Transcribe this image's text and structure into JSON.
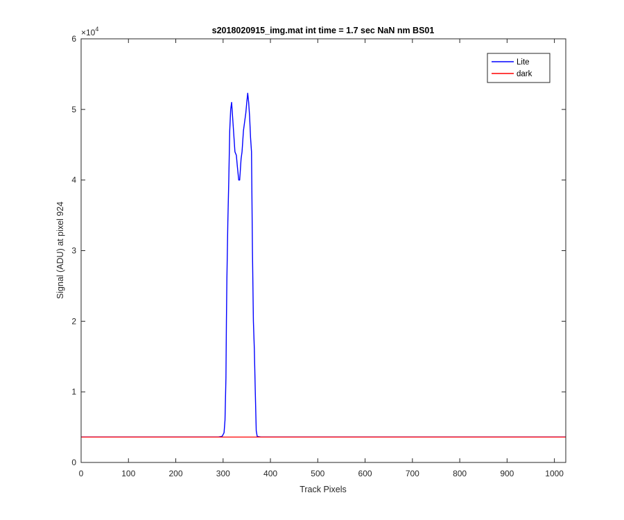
{
  "chart_data": {
    "type": "line",
    "title": "s2018020915_img.mat int time = 1.7 sec  NaN nm BS01",
    "xlabel": "Track Pixels",
    "ylabel": "Signal (ADU) at pixel 924",
    "y_exponent": "×10",
    "y_exponent_power": "4",
    "xlim": [
      0,
      1024
    ],
    "ylim": [
      0,
      60000
    ],
    "x_ticks": [
      0,
      100,
      200,
      300,
      400,
      500,
      600,
      700,
      800,
      900,
      1000
    ],
    "y_ticks": [
      0,
      10000,
      20000,
      30000,
      40000,
      50000,
      60000
    ],
    "y_tick_labels": [
      "0",
      "1",
      "2",
      "3",
      "4",
      "5",
      "6"
    ],
    "legend_position": "top-right",
    "colors": {
      "lite": "#0000ff",
      "dark": "#ff0000"
    },
    "series": [
      {
        "name": "Lite",
        "color": "#0000ff",
        "x": [
          0,
          100,
          200,
          290,
          298,
          302,
          304,
          306,
          307,
          308,
          310,
          312,
          314,
          316,
          318,
          320,
          322,
          325,
          328,
          330,
          333,
          335,
          338,
          340,
          343,
          345,
          348,
          350,
          352,
          354,
          356,
          358,
          360,
          362,
          364,
          366,
          368,
          370,
          372,
          375,
          380,
          500,
          600,
          700,
          800,
          900,
          1024
        ],
        "y": [
          3600,
          3600,
          3600,
          3600,
          3700,
          4200,
          6000,
          12000,
          20000,
          26000,
          34000,
          40000,
          47000,
          50000,
          51000,
          49000,
          47000,
          44000,
          43500,
          42000,
          40000,
          40000,
          43000,
          44000,
          47000,
          48000,
          49500,
          51000,
          52300,
          51000,
          49000,
          46000,
          44000,
          30000,
          20000,
          16000,
          10000,
          4500,
          3700,
          3650,
          3600,
          3600,
          3600,
          3600,
          3600,
          3600,
          3600
        ]
      },
      {
        "name": "dark",
        "color": "#ff0000",
        "x": [
          0,
          1024
        ],
        "y": [
          3600,
          3600
        ]
      }
    ]
  }
}
